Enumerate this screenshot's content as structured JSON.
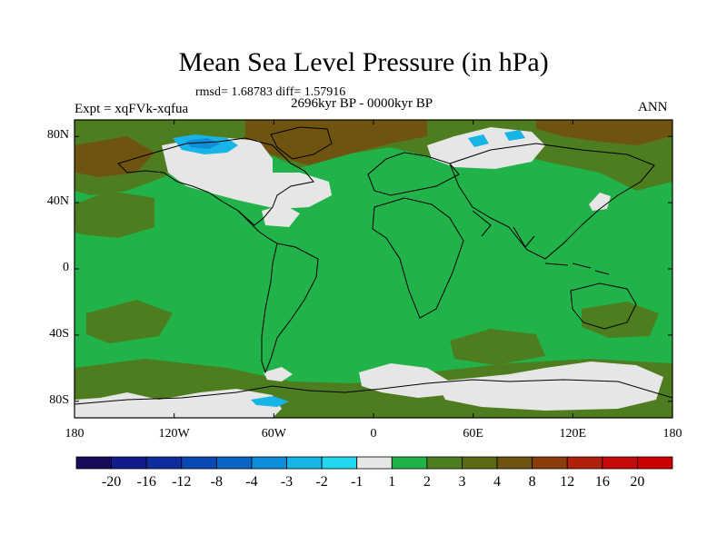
{
  "title": "Mean Sea Level Pressure (in hPa)",
  "stats_text": "rmsd= 1.68783 diff= 1.57916",
  "period_text": "2696kyr BP - 0000kyr BP",
  "experiment_text": "Expt = xqFVk-xqfua",
  "season_label": "ANN",
  "lat_ticks": [
    "80N",
    "40N",
    "0",
    "40S",
    "80S"
  ],
  "lat_values": [
    80,
    40,
    0,
    -40,
    -80
  ],
  "lon_ticks": [
    "180",
    "120W",
    "60W",
    "0",
    "60E",
    "120E",
    "180"
  ],
  "lon_values": [
    -180,
    -120,
    -60,
    0,
    60,
    120,
    180
  ],
  "colorbar": {
    "labels": [
      "-20",
      "-16",
      "-12",
      "-8",
      "-4",
      "-3",
      "-2",
      "-1",
      "1",
      "2",
      "3",
      "4",
      "8",
      "12",
      "16",
      "20"
    ],
    "colors": [
      "#1a0a5a",
      "#131b8c",
      "#0f2c9c",
      "#0a48b4",
      "#0a66c4",
      "#0e8dd8",
      "#17b4e8",
      "#22d8f0",
      "#e6e6e6",
      "#21b24a",
      "#4d7d1f",
      "#5c6a14",
      "#6e5410",
      "#8c3d0c",
      "#b0200c",
      "#c40a0a",
      "#cc0000"
    ]
  },
  "colors": {
    "base": "#21b24a",
    "near_zero": "#e6e6e6",
    "positive_3": "#4d7d1f",
    "positive_4": "#6e5410",
    "negative": "#17b4e8",
    "negative_strong": "#0e8dd8"
  }
}
